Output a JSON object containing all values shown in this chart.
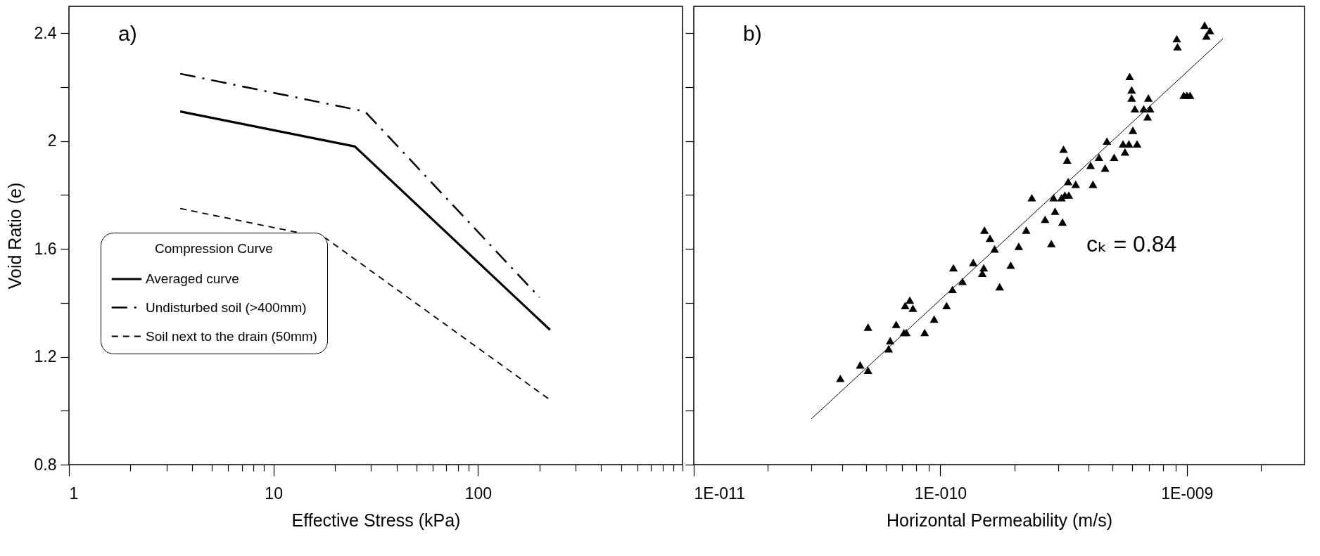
{
  "chart_data": [
    {
      "type": "line",
      "annotations": [
        "a)"
      ],
      "xlabel": "Effective Stress (kPa)",
      "ylabel": "Void Ratio (e)",
      "legend_title": "Compression Curve",
      "legend": "bottom left",
      "log": "x",
      "xlim": [
        1,
        1000
      ],
      "xticks": [
        1,
        {
          "value": 2,
          "label": null
        },
        {
          "value": 3,
          "label": null
        },
        {
          "value": 4,
          "label": null
        },
        {
          "value": 5,
          "label": null
        },
        {
          "value": 6,
          "label": null
        },
        {
          "value": 7,
          "label": null
        },
        {
          "value": 8,
          "label": null
        },
        {
          "value": 9,
          "label": null
        },
        10,
        {
          "value": 20,
          "label": null
        },
        {
          "value": 30,
          "label": null
        },
        {
          "value": 40,
          "label": null
        },
        {
          "value": 50,
          "label": null
        },
        {
          "value": 60,
          "label": null
        },
        {
          "value": 70,
          "label": null
        },
        {
          "value": 80,
          "label": null
        },
        {
          "value": 90,
          "label": null
        },
        100,
        {
          "value": 200,
          "label": null
        },
        {
          "value": 300,
          "label": null
        },
        {
          "value": 400,
          "label": null
        },
        {
          "value": 500,
          "label": null
        },
        {
          "value": 600,
          "label": null
        },
        {
          "value": 700,
          "label": null
        },
        {
          "value": 800,
          "label": null
        },
        {
          "value": 900,
          "label": null
        },
        {
          "value": 1000,
          "label": null
        }
      ],
      "ylim": [
        0.8,
        2.5
      ],
      "yticks": [
        0.8,
        {
          "value": 1.0,
          "label": null
        },
        1.2,
        {
          "value": 1.4,
          "label": null
        },
        1.6,
        {
          "value": 1.8,
          "label": null
        },
        2,
        {
          "value": 2.2,
          "label": null
        },
        2.4
      ],
      "series": [
        {
          "name": "Averaged curve",
          "color": "#000000",
          "line_style": "solid",
          "x": [
            3.5,
            25,
            225
          ],
          "values": [
            2.11,
            1.98,
            1.3
          ]
        },
        {
          "name": "Undisturbed soil (>400mm)",
          "color": "#000000",
          "line_style": "dashdot",
          "x": [
            3.5,
            28,
            200
          ],
          "values": [
            2.25,
            2.11,
            1.42
          ]
        },
        {
          "name": "Soil next to the drain (50mm)",
          "color": "#000000",
          "line_style": "dashed",
          "x": [
            3.5,
            18,
            225
          ],
          "values": [
            1.75,
            1.64,
            1.04
          ]
        }
      ]
    },
    {
      "type": "scatter",
      "annotations": [
        "b)",
        "cₖ = 0.84"
      ],
      "xlabel": "Horizontal Permeability (m/s)",
      "log": "x",
      "xlim": [
        1e-11,
        3e-09
      ],
      "tick_labels": "x",
      "marker": "triangle",
      "xticks": [
        {
          "value": 1e-11,
          "label": "1E-011"
        },
        {
          "value": 2e-11,
          "label": null
        },
        {
          "value": 3e-11,
          "label": null
        },
        {
          "value": 4e-11,
          "label": null
        },
        {
          "value": 5e-11,
          "label": null
        },
        {
          "value": 6e-11,
          "label": null
        },
        {
          "value": 7e-11,
          "label": null
        },
        {
          "value": 8e-11,
          "label": null
        },
        {
          "value": 9e-11,
          "label": null
        },
        {
          "value": 1e-10,
          "label": "1E-010"
        },
        {
          "value": 2e-10,
          "label": null
        },
        {
          "value": 3e-10,
          "label": null
        },
        {
          "value": 4e-10,
          "label": null
        },
        {
          "value": 5e-10,
          "label": null
        },
        {
          "value": 6e-10,
          "label": null
        },
        {
          "value": 7e-10,
          "label": null
        },
        {
          "value": 8e-10,
          "label": null
        },
        {
          "value": 9e-10,
          "label": null
        },
        {
          "value": 1e-09,
          "label": "1E-009"
        },
        {
          "value": 2e-09,
          "label": null
        }
      ],
      "ylim": [
        0.8,
        2.5
      ],
      "yticks": [
        0.8,
        {
          "value": 1.0,
          "label": null
        },
        1.2,
        {
          "value": 1.4,
          "label": null
        },
        1.6,
        {
          "value": 1.8,
          "label": null
        },
        2,
        {
          "value": 2.2,
          "label": null
        },
        2.4
      ],
      "series": [
        {
          "color": "#000000",
          "x": [
            3.93e-11,
            4.73e-11,
            5.09e-11,
            5.09e-11,
            6.17e-11,
            6.26e-11,
            6.62e-11,
            7.12e-11,
            7.28e-11,
            7.2e-11,
            7.52e-11,
            7.74e-11,
            8.64e-11,
            9.44e-11,
            1.06e-10,
            1.12e-10,
            1.13e-10,
            1.23e-10,
            1.36e-10,
            1.48e-10,
            1.5e-10,
            1.51e-10,
            1.59e-10,
            1.66e-10,
            1.74e-10,
            1.93e-10,
            2.08e-10,
            2.23e-10,
            2.35e-10,
            2.66e-10,
            2.82e-10,
            2.88e-10,
            2.92e-10,
            3.1e-10,
            3.13e-10,
            3.16e-10,
            3.27e-10,
            3.2e-10,
            3.3e-10,
            3.32e-10,
            3.54e-10,
            4.07e-10,
            4.16e-10,
            4.4e-10,
            4.66e-10,
            4.74e-10,
            5.07e-10,
            5.51e-10,
            5.61e-10,
            5.82e-10,
            5.86e-10,
            5.97e-10,
            5.97e-10,
            6.04e-10,
            6.15e-10,
            6.28e-10,
            6.68e-10,
            6.93e-10,
            6.98e-10,
            7.09e-10,
            9.1e-10,
            9.16e-10,
            9.71e-10,
            1e-09,
            1.03e-09,
            1.18e-09,
            1.2e-09,
            1.24e-09
          ],
          "values": [
            1.12,
            1.17,
            1.15,
            1.31,
            1.23,
            1.26,
            1.32,
            1.29,
            1.29,
            1.39,
            1.41,
            1.38,
            1.29,
            1.34,
            1.39,
            1.45,
            1.53,
            1.48,
            1.55,
            1.51,
            1.53,
            1.67,
            1.64,
            1.6,
            1.46,
            1.54,
            1.61,
            1.67,
            1.79,
            1.71,
            1.62,
            1.79,
            1.74,
            1.79,
            1.7,
            1.97,
            1.93,
            1.8,
            1.85,
            1.8,
            1.84,
            1.91,
            1.84,
            1.94,
            1.9,
            2.0,
            1.94,
            1.99,
            1.96,
            1.99,
            2.24,
            2.19,
            2.16,
            2.04,
            2.12,
            1.99,
            2.12,
            2.09,
            2.16,
            2.12,
            2.38,
            2.35,
            2.17,
            2.17,
            2.17,
            2.43,
            2.39,
            2.41
          ]
        },
        {
          "type": "line",
          "color": "#000000",
          "line_style": "solid",
          "marker": "none",
          "x": [
            3e-11,
            1.4e-09
          ],
          "values": [
            0.97,
            2.38
          ]
        }
      ]
    }
  ]
}
